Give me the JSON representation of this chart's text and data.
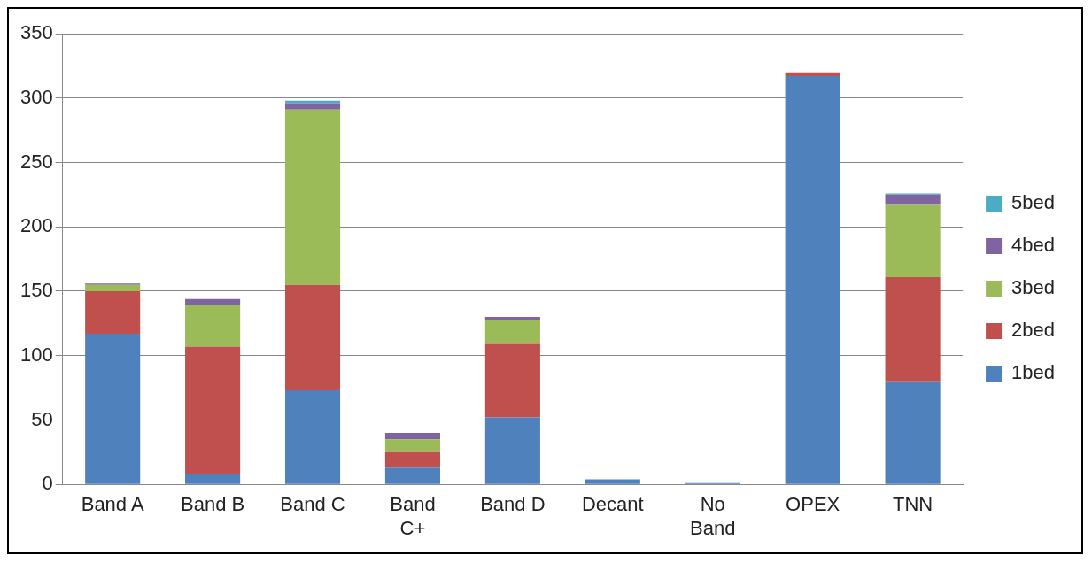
{
  "chart_data": {
    "type": "bar",
    "stacked": true,
    "categories": [
      "Band A",
      "Band B",
      "Band C",
      "Band C+",
      "Band D",
      "Decant",
      "No Band",
      "OPEX",
      "TNN"
    ],
    "series": [
      {
        "name": "1bed",
        "color": "#4f81bd",
        "values": [
          117,
          8,
          73,
          13,
          52,
          4,
          1,
          317,
          80
        ]
      },
      {
        "name": "2bed",
        "color": "#c0504d",
        "values": [
          33,
          99,
          82,
          12,
          57,
          null,
          null,
          3,
          81
        ]
      },
      {
        "name": "3bed",
        "color": "#9bbb59",
        "values": [
          5,
          32,
          136,
          10,
          19,
          null,
          null,
          null,
          56
        ]
      },
      {
        "name": "4bed",
        "color": "#8064a2",
        "values": [
          1,
          5,
          5,
          5,
          2,
          null,
          null,
          null,
          8
        ]
      },
      {
        "name": "5bed",
        "color": "#4bacc6",
        "values": [
          null,
          null,
          2,
          null,
          null,
          null,
          null,
          null,
          1
        ]
      }
    ],
    "ylim": [
      0,
      350
    ],
    "yticks": [
      0,
      50,
      100,
      150,
      200,
      250,
      300,
      350
    ],
    "grid": "y",
    "legend": "right"
  }
}
